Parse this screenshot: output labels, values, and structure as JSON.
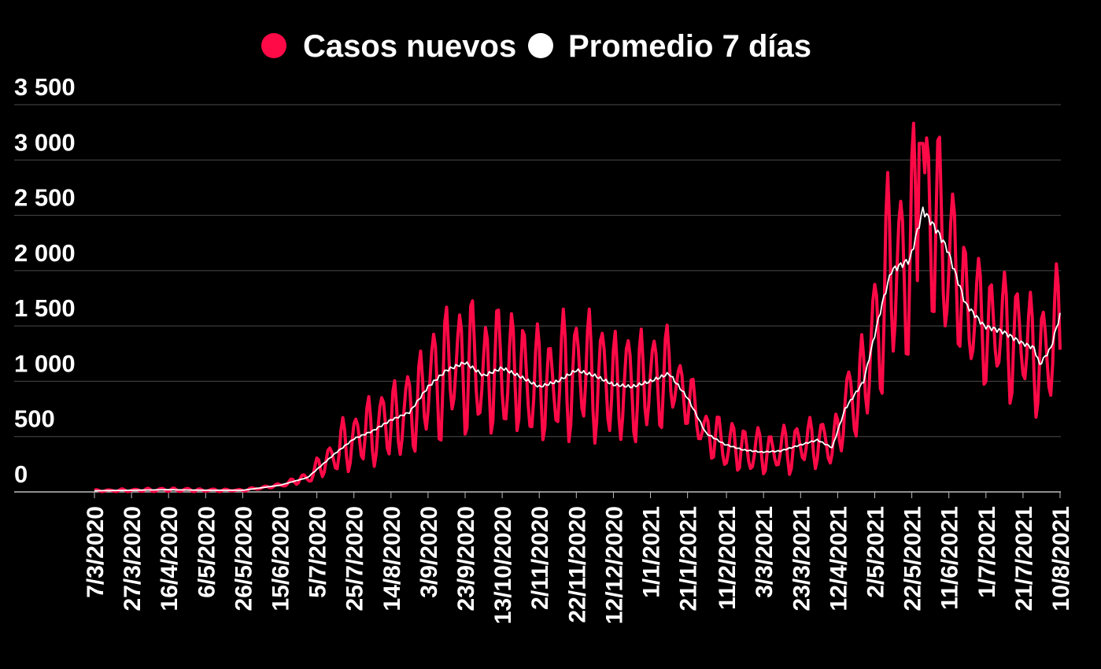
{
  "colors": {
    "background": "#000000",
    "cases": "#ff0a47",
    "average": "#ffffff",
    "grid": "#4a4a4a"
  },
  "legend": [
    {
      "label": "Casos nuevos",
      "color": "#ff0a47"
    },
    {
      "label": "Promedio 7 días",
      "color": "#ffffff"
    }
  ],
  "chart_data": {
    "type": "line",
    "title": "",
    "xlabel": "",
    "ylabel": "",
    "ylim": [
      0,
      3500
    ],
    "y_ticks": [
      0,
      500,
      1000,
      1500,
      2000,
      2500,
      3000,
      3500
    ],
    "y_tick_labels": [
      "0",
      "500",
      "1 000",
      "1 500",
      "2 000",
      "2 500",
      "3 000",
      "3 500"
    ],
    "x_start_date": "2020-03-07",
    "x_end_date": "2021-08-10",
    "x_tick_labels": [
      "7/3/2020",
      "27/3/2020",
      "16/4/2020",
      "6/5/2020",
      "26/5/2020",
      "15/6/2020",
      "5/7/2020",
      "25/7/2020",
      "14/8/2020",
      "3/9/2020",
      "23/9/2020",
      "13/10/2020",
      "2/11/2020",
      "22/11/2020",
      "12/12/2020",
      "1/1/2021",
      "21/1/2021",
      "11/2/2021",
      "3/3/2021",
      "23/3/2021",
      "12/4/2021",
      "2/5/2021",
      "22/5/2021",
      "11/6/2021",
      "1/7/2021",
      "21/7/2021",
      "10/8/2021"
    ],
    "x_tick_dates": [
      "2020-03-07",
      "2020-03-27",
      "2020-04-16",
      "2020-05-06",
      "2020-05-26",
      "2020-06-15",
      "2020-07-05",
      "2020-07-25",
      "2020-08-14",
      "2020-09-03",
      "2020-09-23",
      "2020-10-13",
      "2020-11-02",
      "2020-11-22",
      "2020-12-12",
      "2021-01-01",
      "2021-01-21",
      "2021-02-11",
      "2021-03-03",
      "2021-03-23",
      "2021-04-12",
      "2021-05-02",
      "2021-05-22",
      "2021-06-11",
      "2021-07-01",
      "2021-07-21",
      "2021-08-10"
    ],
    "grid": true,
    "legend_position": "top-center",
    "series": [
      {
        "name": "Casos nuevos",
        "color": "#ff0a47",
        "amplitude": [
          [
            0,
            0.9
          ],
          [
            60,
            0.9
          ],
          [
            95,
            0.25
          ],
          [
            135,
            0.6
          ],
          [
            180,
            0.55
          ],
          [
            220,
            0.55
          ],
          [
            250,
            0.55
          ],
          [
            295,
            0.55
          ],
          [
            320,
            0.3
          ],
          [
            345,
            0.6
          ],
          [
            380,
            0.55
          ],
          [
            400,
            0.45
          ],
          [
            430,
            0.5
          ],
          [
            470,
            0.35
          ],
          [
            521,
            0.45
          ]
        ]
      },
      {
        "name": "Promedio 7 días",
        "color": "#ffffff",
        "values": [
          [
            0,
            10
          ],
          [
            20,
            15
          ],
          [
            40,
            20
          ],
          [
            60,
            15
          ],
          [
            80,
            15
          ],
          [
            100,
            60
          ],
          [
            115,
            130
          ],
          [
            130,
            350
          ],
          [
            140,
            480
          ],
          [
            150,
            550
          ],
          [
            160,
            650
          ],
          [
            170,
            720
          ],
          [
            180,
            950
          ],
          [
            190,
            1100
          ],
          [
            200,
            1170
          ],
          [
            210,
            1050
          ],
          [
            220,
            1120
          ],
          [
            230,
            1040
          ],
          [
            240,
            950
          ],
          [
            250,
            1000
          ],
          [
            260,
            1100
          ],
          [
            270,
            1050
          ],
          [
            280,
            970
          ],
          [
            290,
            950
          ],
          [
            300,
            1000
          ],
          [
            310,
            1070
          ],
          [
            320,
            850
          ],
          [
            330,
            530
          ],
          [
            340,
            430
          ],
          [
            350,
            380
          ],
          [
            360,
            360
          ],
          [
            370,
            370
          ],
          [
            380,
            420
          ],
          [
            390,
            470
          ],
          [
            398,
            400
          ],
          [
            405,
            750
          ],
          [
            415,
            1000
          ],
          [
            420,
            1350
          ],
          [
            425,
            1700
          ],
          [
            430,
            2000
          ],
          [
            440,
            2100
          ],
          [
            447,
            2550
          ],
          [
            455,
            2350
          ],
          [
            460,
            2200
          ],
          [
            470,
            1700
          ],
          [
            480,
            1500
          ],
          [
            490,
            1450
          ],
          [
            500,
            1350
          ],
          [
            507,
            1300
          ],
          [
            510,
            1150
          ],
          [
            516,
            1300
          ],
          [
            521,
            1600
          ]
        ]
      }
    ]
  }
}
